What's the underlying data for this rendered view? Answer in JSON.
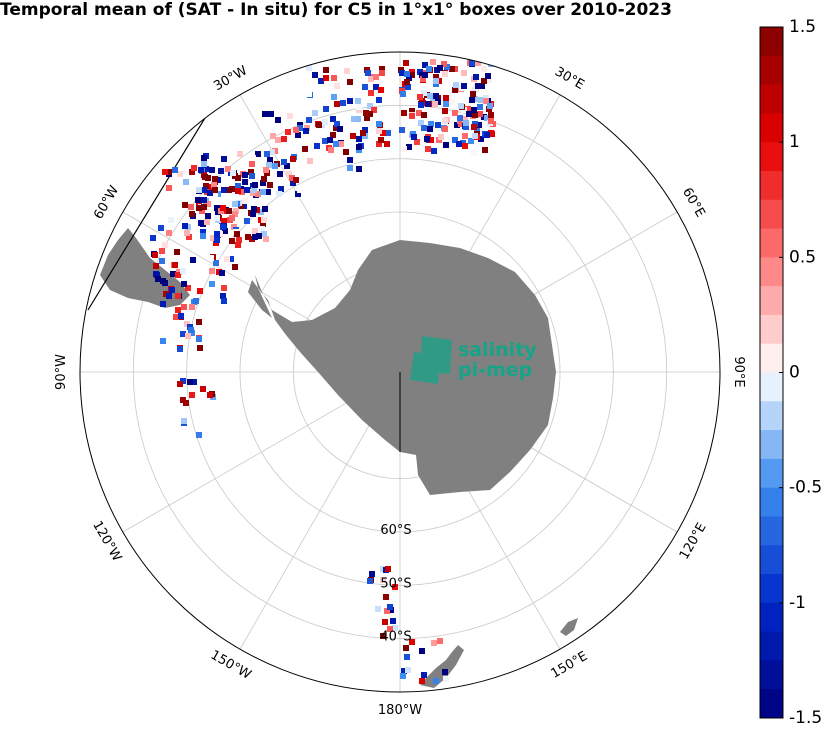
{
  "title": "Temporal mean of (SAT - In situ) for C5 in 1°x1° boxes over 2010-2023",
  "colorbar": {
    "labels": [
      {
        "text": "1.5",
        "value": 1.5
      },
      {
        "text": "1",
        "value": 1.0
      },
      {
        "text": "0.5",
        "value": 0.5
      },
      {
        "text": "0",
        "value": 0.0
      },
      {
        "text": "-0.5",
        "value": -0.5
      },
      {
        "text": "-1",
        "value": -1.0
      },
      {
        "text": "-1.5",
        "value": -1.5
      }
    ],
    "min": -1.5,
    "max": 1.5,
    "levels": 24
  },
  "longitude_labels": [
    {
      "text": "30°W",
      "lon": -30
    },
    {
      "text": "30°E",
      "lon": 30
    },
    {
      "text": "60°W",
      "lon": -60
    },
    {
      "text": "60°E",
      "lon": 60
    },
    {
      "text": "90°W",
      "lon": -90
    },
    {
      "text": "90°E",
      "lon": 90
    },
    {
      "text": "120°W",
      "lon": -120
    },
    {
      "text": "120°E",
      "lon": 120
    },
    {
      "text": "150°W",
      "lon": -150
    },
    {
      "text": "150°E",
      "lon": 150
    },
    {
      "text": "180°W",
      "lon": 180
    }
  ],
  "latitude_labels": [
    {
      "text": "60°S",
      "lat": -60
    },
    {
      "text": "50°S",
      "lat": -50
    },
    {
      "text": "40°S",
      "lat": -40
    }
  ],
  "logo": {
    "line1": "salinity",
    "line2": "pi-mep"
  },
  "colors": {
    "land": "#808080",
    "grid": "#c8c8c8",
    "low": "#00007f",
    "zero": "#ffffff",
    "high": "#7f0000"
  }
}
